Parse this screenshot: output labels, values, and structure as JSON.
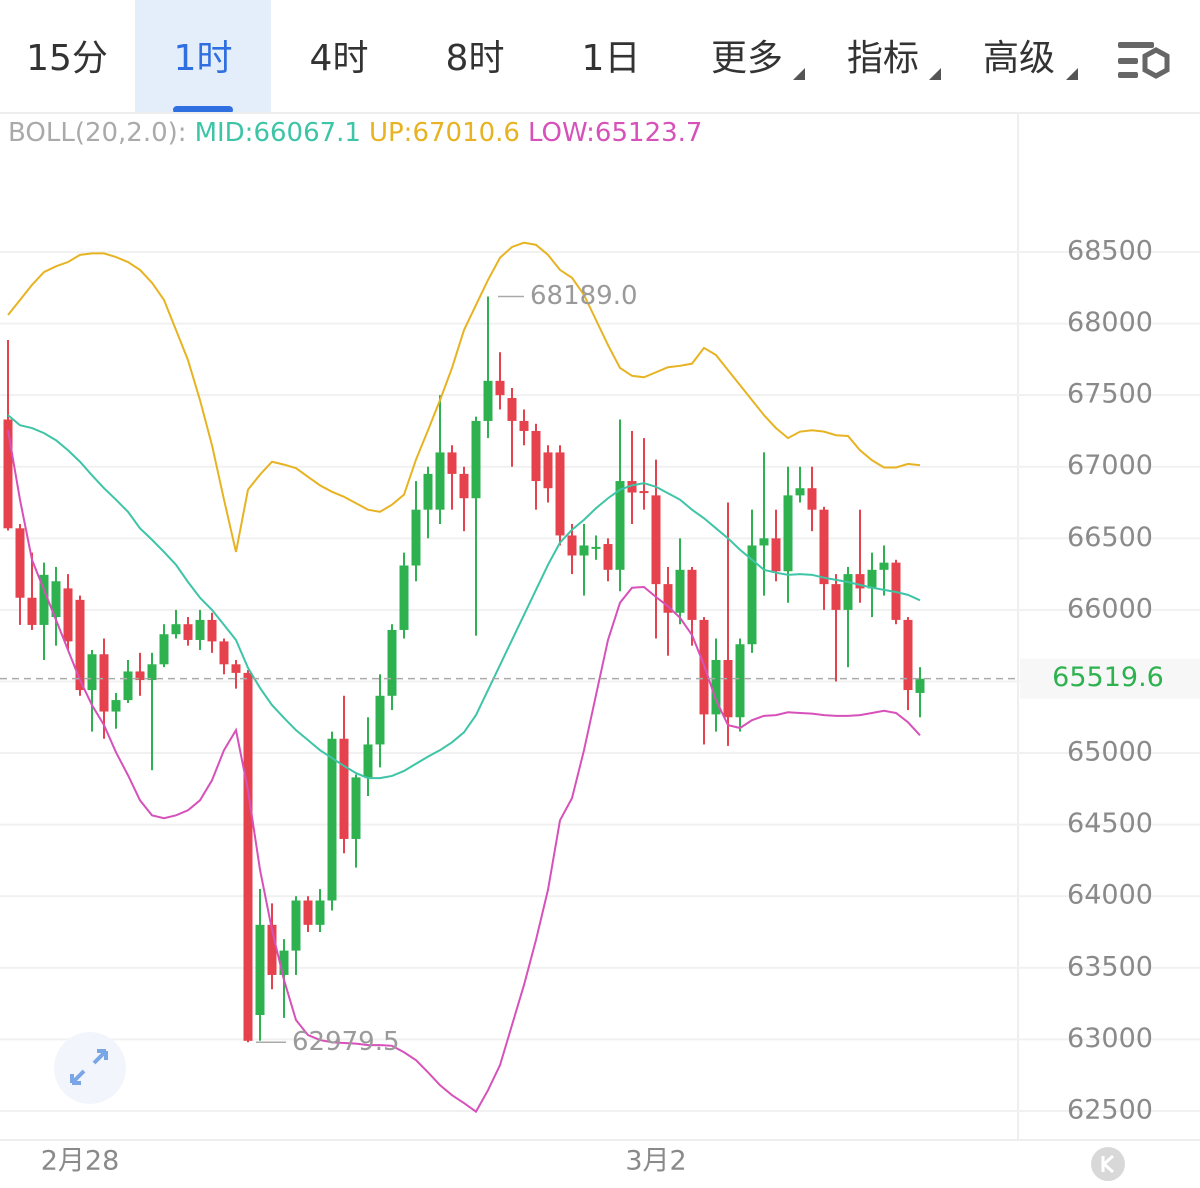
{
  "tabs": [
    "15分",
    "1时",
    "4时",
    "8时",
    "1日",
    "更多",
    "指标",
    "高级"
  ],
  "active_tab": 1,
  "chart_data": {
    "type": "candlestick",
    "indicator": "BOLL(20,2.0):",
    "categories": [
      null,
      null,
      null,
      null,
      null,
      null,
      "2月28",
      null,
      null,
      null,
      null,
      null,
      null,
      null,
      null,
      null,
      null,
      null,
      null,
      null,
      null,
      null,
      null,
      null,
      null,
      null,
      null,
      null,
      null,
      null,
      null,
      null,
      null,
      null,
      null,
      null,
      null,
      null,
      null,
      null,
      null,
      null,
      null,
      null,
      null,
      null,
      null,
      null,
      null,
      null,
      null,
      null,
      null,
      null,
      "3月2",
      null,
      null,
      null,
      null,
      null,
      null,
      null,
      null,
      null,
      null,
      null,
      null,
      null,
      null,
      null,
      null,
      null,
      null,
      null,
      null,
      null,
      null
    ],
    "open": [
      67330,
      66570,
      66085,
      65895,
      65950,
      66150,
      66070,
      65440,
      65690,
      65290,
      65370,
      65570,
      65510,
      65620,
      65830,
      65900,
      65790,
      65930,
      65780,
      65620,
      65560,
      63170,
      63800,
      63450,
      63620,
      63970,
      63800,
      63970,
      65100,
      64400,
      64830,
      65060,
      65400,
      65860,
      66310,
      66700,
      66700,
      67100,
      66950,
      66780,
      67320,
      67600,
      67480,
      67320,
      67250,
      67100,
      67100,
      66520,
      66380,
      66440,
      66460,
      66280,
      66900,
      66830,
      66800,
      66180,
      65980,
      66280,
      65930,
      65270,
      65650,
      65250,
      65760,
      66450,
      66500,
      66270,
      66800,
      66850,
      66700,
      66180,
      66000,
      66250,
      66150,
      66280,
      66330,
      65930,
      65420
    ],
    "high": [
      67885,
      66600,
      66400,
      66330,
      66300,
      66250,
      66100,
      65720,
      65800,
      65420,
      65650,
      65700,
      65700,
      65900,
      66000,
      65950,
      66000,
      65980,
      65800,
      65650,
      65580,
      64050,
      63950,
      63700,
      64000,
      64000,
      64050,
      65150,
      65400,
      64850,
      65250,
      65550,
      65900,
      66400,
      66900,
      67000,
      67500,
      67150,
      67000,
      67350,
      68189,
      67800,
      67550,
      67400,
      67300,
      67150,
      67150,
      66600,
      66600,
      66520,
      66500,
      67330,
      67250,
      67200,
      67050,
      66300,
      66500,
      66300,
      65950,
      65800,
      66750,
      65800,
      66700,
      67100,
      66700,
      67000,
      67000,
      67000,
      66720,
      66250,
      66300,
      66700,
      66400,
      66450,
      66350,
      65950,
      65600
    ],
    "low": [
      66555,
      65895,
      65860,
      65650,
      65750,
      65720,
      65400,
      65150,
      65100,
      65170,
      65350,
      65400,
      64880,
      65600,
      65800,
      65750,
      65720,
      65700,
      65550,
      65450,
      62979.5,
      62990,
      63350,
      63150,
      63450,
      63750,
      63750,
      63900,
      64300,
      64200,
      64700,
      64900,
      65300,
      65800,
      66200,
      66500,
      66600,
      66700,
      66550,
      65820,
      67200,
      67400,
      67000,
      67150,
      66700,
      66750,
      66450,
      66250,
      66100,
      66350,
      66200,
      66130,
      66600,
      66700,
      65800,
      65680,
      65900,
      65750,
      65060,
      65150,
      65050,
      65150,
      65700,
      66100,
      66200,
      66050,
      66750,
      66550,
      66000,
      65500,
      65600,
      66050,
      65950,
      66100,
      65900,
      65300,
      65250
    ],
    "close": [
      66570,
      66085,
      65895,
      66245,
      66200,
      65780,
      65440,
      65690,
      65290,
      65370,
      65570,
      65510,
      65620,
      65830,
      65900,
      65790,
      65930,
      65780,
      65620,
      65560,
      62990,
      63800,
      63450,
      63620,
      63970,
      63800,
      63970,
      65100,
      64400,
      64830,
      65060,
      65400,
      65860,
      66310,
      66700,
      66950,
      67100,
      66950,
      66780,
      67320,
      67600,
      67500,
      67320,
      67250,
      66900,
      66850,
      66520,
      66380,
      66450,
      66440,
      66280,
      66900,
      66820,
      66820,
      66180,
      65980,
      66280,
      65930,
      65270,
      65650,
      65250,
      65760,
      66450,
      66500,
      66270,
      66800,
      66850,
      66700,
      66180,
      66000,
      66250,
      66150,
      66280,
      66330,
      65930,
      65440,
      65519.6
    ],
    "up_color": "#2db24f",
    "down_color": "#e5424d",
    "series": [
      {
        "name": "MID:66067.1",
        "color": "#3ec4a6",
        "values": [
          67360,
          67290,
          67270,
          67235,
          67185,
          67115,
          67035,
          66940,
          66850,
          66770,
          66685,
          66570,
          66490,
          66405,
          66315,
          66195,
          66085,
          66000,
          65895,
          65790,
          65595,
          65455,
          65335,
          65245,
          65160,
          65090,
          65020,
          64965,
          64910,
          64860,
          64825,
          64825,
          64840,
          64875,
          64925,
          64975,
          65020,
          65075,
          65145,
          65265,
          65440,
          65615,
          65790,
          65965,
          66140,
          66315,
          66470,
          66560,
          66630,
          66710,
          66780,
          66840,
          66870,
          66885,
          66860,
          66815,
          66770,
          66700,
          66640,
          66570,
          66500,
          66420,
          66350,
          66280,
          66260,
          66245,
          66250,
          66245,
          66225,
          66210,
          66195,
          66175,
          66155,
          66140,
          66125,
          66105,
          66067.1
        ]
      },
      {
        "name": "UP:67010.6",
        "color": "#e7b322",
        "values": [
          68060,
          68165,
          68270,
          68360,
          68400,
          68430,
          68480,
          68490,
          68490,
          68465,
          68430,
          68375,
          68285,
          68165,
          67955,
          67745,
          67465,
          67150,
          66770,
          66405,
          66840,
          66945,
          67035,
          67015,
          66990,
          66930,
          66870,
          66825,
          66790,
          66745,
          66700,
          66685,
          66735,
          66805,
          67050,
          67255,
          67465,
          67690,
          67955,
          68130,
          68305,
          68460,
          68535,
          68565,
          68550,
          68480,
          68375,
          68320,
          68200,
          68025,
          67850,
          67690,
          67635,
          67625,
          67660,
          67695,
          67705,
          67720,
          67830,
          67780,
          67675,
          67570,
          67465,
          67360,
          67270,
          67200,
          67245,
          67255,
          67245,
          67220,
          67215,
          67115,
          67045,
          66995,
          66995,
          67020,
          67010.6
        ]
      },
      {
        "name": "LOW:65123.7",
        "color": "#d651b9",
        "values": [
          67255,
          66770,
          66350,
          66140,
          65930,
          65720,
          65510,
          65335,
          65195,
          65005,
          64845,
          64670,
          64565,
          64545,
          64565,
          64600,
          64670,
          64810,
          65020,
          65160,
          64740,
          64185,
          63765,
          63415,
          63135,
          63030,
          62995,
          62980,
          62975,
          62970,
          62960,
          62960,
          62955,
          62910,
          62855,
          62770,
          62680,
          62610,
          62555,
          62495,
          62645,
          62820,
          63100,
          63380,
          63695,
          64045,
          64530,
          64685,
          65020,
          65405,
          65790,
          66050,
          66155,
          66160,
          66090,
          66025,
          65945,
          65825,
          65615,
          65370,
          65195,
          65175,
          65230,
          65260,
          65265,
          65285,
          65280,
          65275,
          65265,
          65260,
          65260,
          65265,
          65280,
          65295,
          65280,
          65215,
          65123.7
        ]
      }
    ],
    "high_marker": {
      "index": 40,
      "value": {
        "value": 68189.0,
        "label": "68189.0"
      }
    },
    "low_marker": {
      "index": 20,
      "value": 62979.5
    },
    "current_price": 65519.6,
    "ylim": [
      62297,
      69471
    ],
    "yticks": [
      62500,
      63000,
      63500,
      64000,
      64500,
      65000,
      65500,
      66000,
      66500,
      67000,
      67500,
      68000,
      68500
    ],
    "grid": true
  }
}
